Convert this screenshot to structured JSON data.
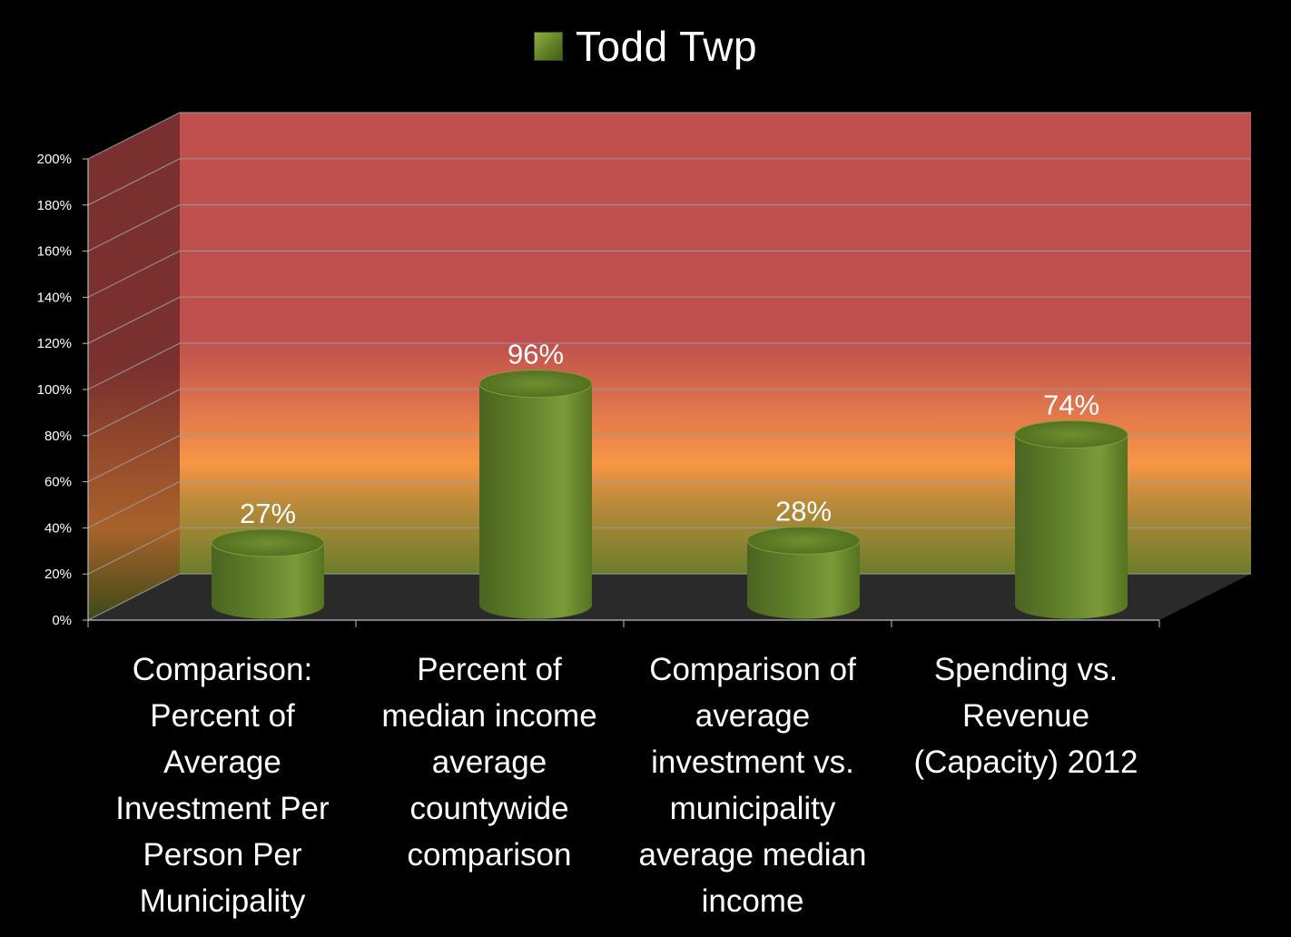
{
  "chart_data": {
    "type": "bar",
    "title": "",
    "categories": [
      "Comparison: Percent of Average Investment Per Person Per Municipality",
      "Percent of median income average countywide comparison",
      "Comparison of average investment vs. municipality average median income",
      "Spending vs. Revenue (Capacity) 2012"
    ],
    "category_lines": [
      "Comparison:\nPercent of\nAverage\nInvestment Per\nPerson Per\nMunicipality",
      "Percent of\nmedian income\naverage\ncountywide\ncomparison",
      "Comparison of\naverage\ninvestment vs.\nmunicipality\naverage median\nincome",
      "Spending vs.\nRevenue\n(Capacity) 2012"
    ],
    "series": [
      {
        "name": "Todd Twp",
        "values": [
          27,
          96,
          28,
          74
        ],
        "data_labels": [
          "27%",
          "96%",
          "28%",
          "74%"
        ]
      }
    ],
    "yticks": [
      "0%",
      "20%",
      "40%",
      "60%",
      "80%",
      "100%",
      "120%",
      "140%",
      "160%",
      "180%",
      "200%"
    ],
    "ylim": [
      0,
      200
    ],
    "legend_position": "top-center",
    "grid": true,
    "colors": {
      "bar": "#6b8a2e",
      "back_wall_top": "#c0504d",
      "back_wall_mid": "#f79646",
      "back_wall_bottom": "#6b7d2a",
      "floor": "#2a2a2a"
    }
  }
}
